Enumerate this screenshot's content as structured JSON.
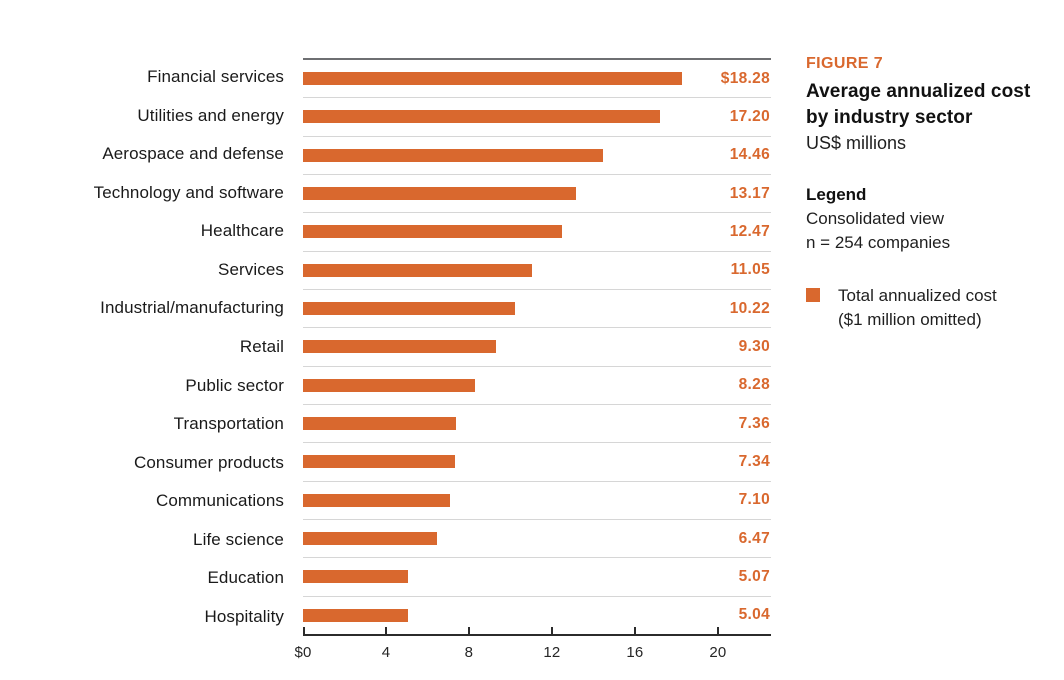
{
  "panel": {
    "figure_label": "FIGURE 7",
    "title_line1": "Average annualized cost",
    "title_line2": "by industry sector",
    "subtitle": "US$ millions",
    "legend_heading": "Legend",
    "legend_line1": "Consolidated view",
    "legend_line2": "n = 254 companies",
    "legend_item": {
      "swatch_color": "#d9682e",
      "label_line1": "Total annualized cost",
      "label_line2": "($1 million omitted)"
    }
  },
  "chart_data": {
    "type": "bar",
    "orientation": "horizontal",
    "title": "Average annualized cost by industry sector",
    "subtitle": "US$ millions",
    "note": "Consolidated view, n = 254 companies",
    "series_name": "Total annualized cost ($1 million omitted)",
    "categories": [
      "Financial services",
      "Utilities and energy",
      "Aerospace and defense",
      "Technology and software",
      "Healthcare",
      "Services",
      "Industrial/manufacturing",
      "Retail",
      "Public sector",
      "Transportation",
      "Consumer products",
      "Communications",
      "Life science",
      "Education",
      "Hospitality"
    ],
    "values": [
      18.28,
      17.2,
      14.46,
      13.17,
      12.47,
      11.05,
      10.22,
      9.3,
      8.28,
      7.36,
      7.34,
      7.1,
      6.47,
      5.07,
      5.04
    ],
    "value_labels": [
      "$18.28",
      "17.20",
      "14.46",
      "13.17",
      "12.47",
      "11.05",
      "10.22",
      "9.30",
      "8.28",
      "7.36",
      "7.34",
      "7.10",
      "6.47",
      "5.07",
      "5.04"
    ],
    "x_ticks": [
      {
        "value": 0,
        "label": "$0"
      },
      {
        "value": 4,
        "label": "4"
      },
      {
        "value": 8,
        "label": "8"
      },
      {
        "value": 12,
        "label": "12"
      },
      {
        "value": 16,
        "label": "16"
      },
      {
        "value": 20,
        "label": "20"
      }
    ],
    "xlim": [
      0,
      22.56
    ],
    "bar_color": "#d9682e",
    "grid": "horizontal row separators",
    "legend_position": "right"
  }
}
